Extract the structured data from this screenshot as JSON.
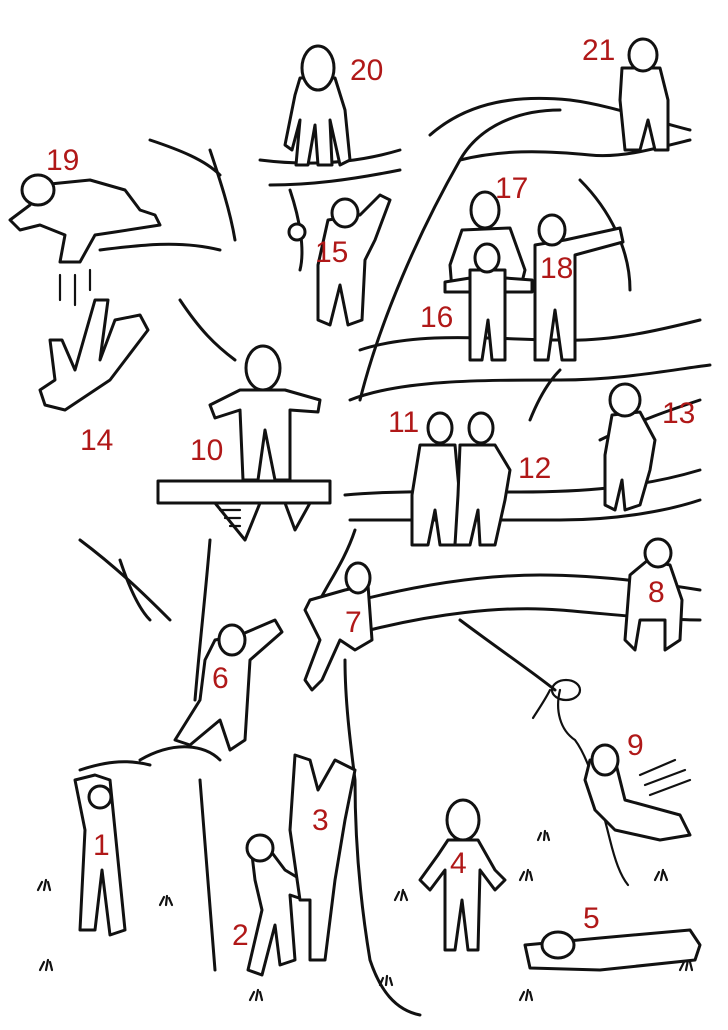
{
  "labels": [
    "1",
    "2",
    "3",
    "4",
    "5",
    "6",
    "7",
    "8",
    "9",
    "10",
    "11",
    "12",
    "13",
    "14",
    "15",
    "16",
    "17",
    "18",
    "19",
    "20",
    "21"
  ],
  "label_color": "#b01818",
  "line_color": "#111111",
  "background": "#ffffff"
}
